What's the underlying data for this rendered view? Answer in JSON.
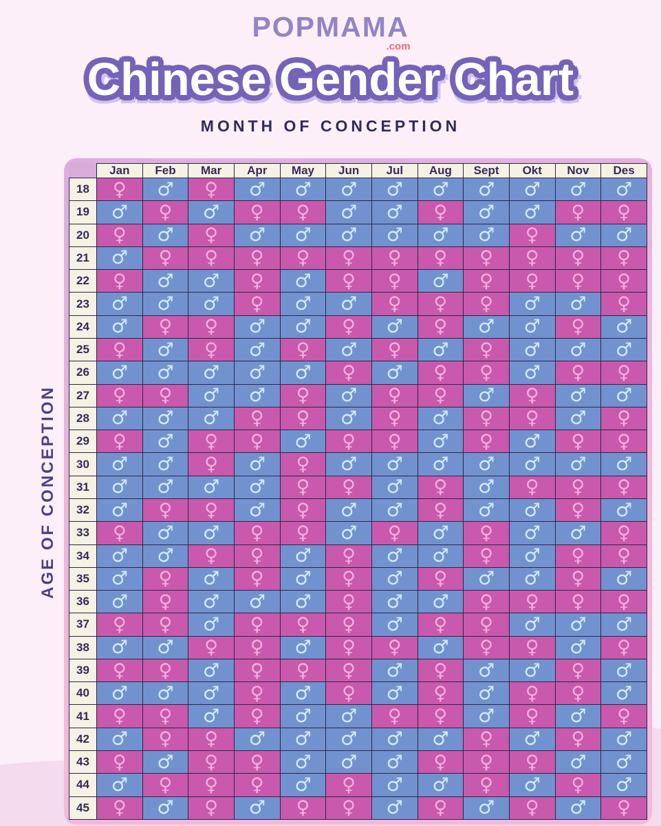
{
  "logo": {
    "text": "POPMAMA",
    "suffix": ".com"
  },
  "title": {
    "text": "Chinese Gender Chart"
  },
  "subtitle": "MONTH OF CONCEPTION",
  "side_label": "AGE OF CONCEPTION",
  "symbols": {
    "female": "♀",
    "male": "♂"
  },
  "colors": {
    "page_bg": "#fceff8",
    "wave_bg": "#f4dbee",
    "logo_color": "#9184c7",
    "logo_suffix_color": "#ea6a6f",
    "title_fill": "#ffffff",
    "title_outline": "#7463b8",
    "title_shadow": "#cfc2ec",
    "subtitle_color": "#312b5a",
    "side_label_color": "#4e4086",
    "header_bg": "#f5f1e3",
    "header_text": "#312b5a",
    "grid_border": "#2b2547",
    "corner_bg": "#d8abdb",
    "frame_top": "#dcaede",
    "frame_bottom": "#f2b9dc",
    "female_bg": "#c959ac",
    "male_bg": "#7292cf",
    "female_symbol": "#f4b0e0",
    "male_symbol": "#d4ebfa"
  },
  "chart_data": {
    "type": "heatmap",
    "title": "Chinese Gender Chart",
    "x_axis_label": "MONTH OF CONCEPTION",
    "y_axis_label": "AGE OF CONCEPTION",
    "cell_legend": {
      "F": "girl — female symbol on pink",
      "M": "boy — male symbol on blue"
    },
    "columns": [
      "Jan",
      "Feb",
      "Mar",
      "Apr",
      "May",
      "Jun",
      "Jul",
      "Aug",
      "Sept",
      "Okt",
      "Nov",
      "Des"
    ],
    "rows": [
      {
        "age": "18",
        "genders": "FMFMMMMMMMMM"
      },
      {
        "age": "19",
        "genders": "MFMFFMMFMMFF"
      },
      {
        "age": "20",
        "genders": "FMFMMMMMMFMM"
      },
      {
        "age": "21",
        "genders": "MFFFFFFFFFFF"
      },
      {
        "age": "22",
        "genders": "FMMFMFFMFFFF"
      },
      {
        "age": "23",
        "genders": "MMMFMMFFFMMF"
      },
      {
        "age": "24",
        "genders": "MFFMMFMFMMFM"
      },
      {
        "age": "25",
        "genders": "FMFMFMFMFMMM"
      },
      {
        "age": "26",
        "genders": "MMMMMFMFFMFF"
      },
      {
        "age": "27",
        "genders": "FFMMFMFFMFMM"
      },
      {
        "age": "28",
        "genders": "MMMFFMFMFFMF"
      },
      {
        "age": "29",
        "genders": "FMFFMFFMFMFF"
      },
      {
        "age": "30",
        "genders": "MMFMFMMMMMMM"
      },
      {
        "age": "31",
        "genders": "MMMMFFMFMFFF"
      },
      {
        "age": "32",
        "genders": "MFFMFMMFMMFM"
      },
      {
        "age": "33",
        "genders": "FMMFFMFMFMMF"
      },
      {
        "age": "34",
        "genders": "MMFFMFMMFMFF"
      },
      {
        "age": "35",
        "genders": "MFMFMFMFMMFM"
      },
      {
        "age": "36",
        "genders": "MFMMMFMMFFFF"
      },
      {
        "age": "37",
        "genders": "FFMFFFMFFMMM"
      },
      {
        "age": "38",
        "genders": "MMFFMFFMFFMF"
      },
      {
        "age": "39",
        "genders": "FFMFFFMFMMFM"
      },
      {
        "age": "40",
        "genders": "MMMFMFMFMFFM"
      },
      {
        "age": "41",
        "genders": "FFMFMMFFMFMF"
      },
      {
        "age": "42",
        "genders": "MFFMMMMMFMFM"
      },
      {
        "age": "43",
        "genders": "FMFFMMMFFFMM"
      },
      {
        "age": "44",
        "genders": "MFFFMFMMFMFM"
      },
      {
        "age": "45",
        "genders": "FMFMFFMFMFMF"
      }
    ]
  }
}
